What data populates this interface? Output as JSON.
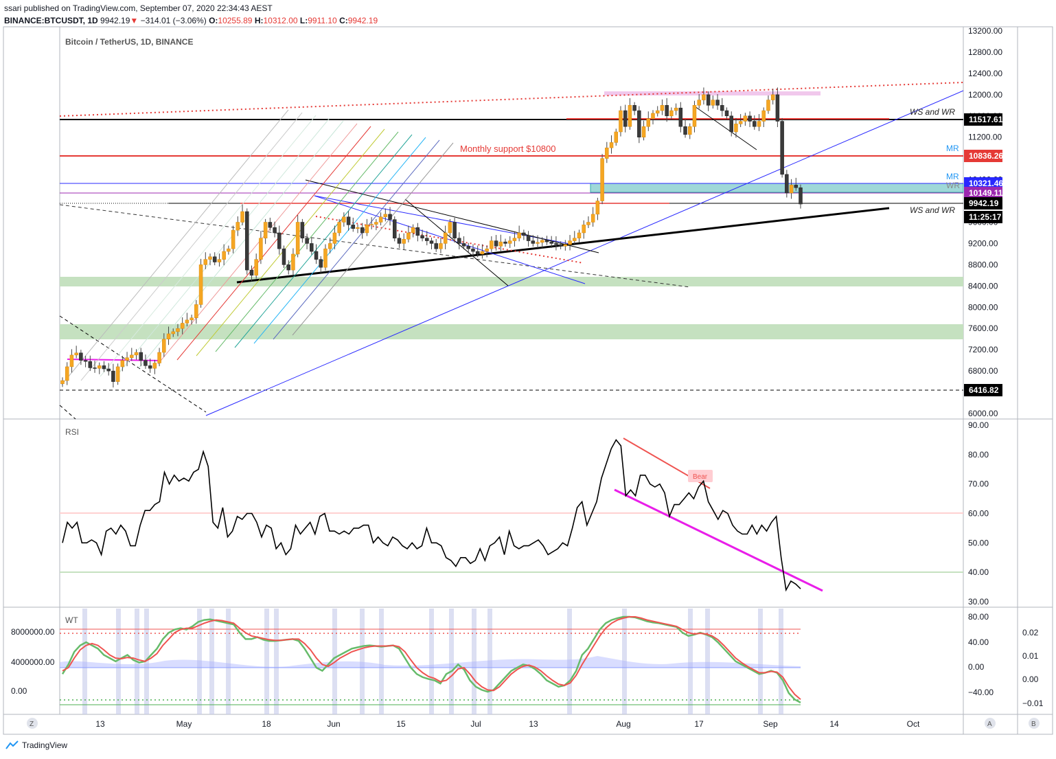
{
  "header": {
    "published": "ssari published on TradingView.com, September 07, 2020 22:34:43 AEST",
    "symbol": "BINANCE:BTCUSDT, 1D",
    "last": "9942.19",
    "arrow": "▼",
    "change": "−314.01 (−3.06%)",
    "o_label": "O:",
    "o_value": "10255.89",
    "h_label": "H:",
    "h_value": "10312.00",
    "l_label": "L:",
    "l_value": "9911.10",
    "c_label": "C:",
    "c_value": "9942.19"
  },
  "footer": {
    "brand": "TradingView"
  },
  "colors": {
    "up": "#f5a623",
    "down": "#3a3a3a",
    "rsi": "#000000",
    "wt_green": "#4caf50",
    "wt_red": "#ef5350",
    "support_zone": "#c5e1c0",
    "resistance": "#e53935"
  },
  "chart_data": [
    {
      "type": "candlestick",
      "title": "Bitcoin / TetherUS, 1D, BINANCE",
      "ylim": [
        5800,
        13300
      ],
      "y_ticks": [
        "13200.00",
        "12800.00",
        "12400.00",
        "12000.00",
        "11600.00",
        "11200.00",
        "10800.00",
        "10400.00",
        "10000.00",
        "9600.00",
        "9200.00",
        "8800.00",
        "8400.00",
        "8000.00",
        "7600.00",
        "7200.00",
        "6800.00",
        "6400.00",
        "6000.00"
      ],
      "x_ticks": [
        "13",
        "May",
        "18",
        "Jun",
        "15",
        "Jul",
        "13",
        "Aug",
        "17",
        "Sep",
        "14",
        "Oct"
      ],
      "price_labels": [
        {
          "text": "11517.61",
          "value": 11517.61,
          "bg": "#000000"
        },
        {
          "text": "10836.26",
          "value": 10836.26,
          "bg": "#e53935"
        },
        {
          "text": "10321.46",
          "value": 10321.46,
          "bg": "#2828ff"
        },
        {
          "text": "10149.11",
          "value": 10149.11,
          "bg": "#9c27b0"
        },
        {
          "text": "9942.19",
          "value": 9942.19,
          "bg": "#000000"
        },
        {
          "text": "11:25:17",
          "value": 9700,
          "bg": "#000000"
        },
        {
          "text": "6416.82",
          "value": 6416.82,
          "bg": "#000000"
        }
      ],
      "annotations": [
        "Monthly support $10800",
        "WS and WR",
        "WS and WR",
        "MR",
        "MR",
        "WR"
      ],
      "closes": [
        6620,
        6880,
        7100,
        7140,
        7000,
        6980,
        6860,
        6850,
        6900,
        6840,
        6800,
        6600,
        6880,
        7000,
        7050,
        7100,
        7150,
        7000,
        6900,
        6850,
        6950,
        7150,
        7400,
        7500,
        7540,
        7600,
        7700,
        7760,
        7800,
        8050,
        8800,
        8900,
        8950,
        8850,
        8900,
        9050,
        9100,
        9450,
        9600,
        9800,
        8700,
        8600,
        8900,
        9300,
        9600,
        9500,
        9400,
        9100,
        8800,
        8700,
        9000,
        9600,
        9300,
        9200,
        9050,
        8900,
        8750,
        9100,
        9200,
        9400,
        9600,
        9700,
        9550,
        9480,
        9500,
        9400,
        9550,
        9560,
        9600,
        9700,
        9750,
        9650,
        9300,
        9200,
        9280,
        9400,
        9500,
        9350,
        9300,
        9250,
        9200,
        9100,
        9200,
        9400,
        9600,
        9300,
        9200,
        9150,
        9100,
        9050,
        9000,
        9050,
        9100,
        9250,
        9150,
        9230,
        9200,
        9250,
        9300,
        9400,
        9350,
        9250,
        9200,
        9220,
        9260,
        9230,
        9200,
        9180,
        9150,
        9180,
        9250,
        9300,
        9400,
        9550,
        9600,
        9750,
        10000,
        10800,
        11000,
        11100,
        11300,
        11700,
        11400,
        11800,
        11700,
        11200,
        11400,
        11550,
        11650,
        11700,
        11800,
        11600,
        11700,
        11750,
        11400,
        11250,
        11400,
        11800,
        11900,
        12000,
        11800,
        11900,
        11800,
        11700,
        11600,
        11300,
        11450,
        11500,
        11600,
        11500,
        11400,
        11500,
        11700,
        11900,
        12000,
        11500,
        10500,
        10150,
        10300,
        10250,
        9942
      ],
      "x_start": 9,
      "x_end": 109
    },
    {
      "type": "line",
      "title": "RSI",
      "ylim": [
        28,
        91
      ],
      "y_ticks": [
        "90.00",
        "80.00",
        "70.00",
        "60.00",
        "50.00",
        "40.00",
        "30.00"
      ],
      "levels": [
        60,
        40
      ],
      "values": [
        50,
        57,
        55,
        57,
        50,
        50,
        51,
        50,
        46,
        54,
        55,
        53,
        56,
        54,
        49,
        49,
        56,
        61,
        61,
        63,
        64,
        74,
        70,
        73,
        71,
        72,
        71,
        74,
        75,
        81,
        76,
        57,
        55,
        62,
        52,
        54,
        59,
        58,
        60,
        60,
        57,
        52,
        56,
        55,
        48,
        50,
        46,
        48,
        56,
        53,
        55,
        57,
        53,
        59,
        60,
        54,
        54,
        53,
        54,
        53,
        55,
        55,
        56,
        56,
        50,
        52,
        50,
        49,
        52,
        51,
        49,
        48,
        50,
        48,
        49,
        55,
        50,
        50,
        49,
        45,
        44,
        42,
        45,
        45,
        43,
        44,
        48,
        44,
        49,
        50,
        52,
        46,
        54,
        49,
        48,
        49,
        49,
        50,
        51,
        49,
        46,
        47,
        48,
        50,
        49,
        55,
        62,
        64,
        56,
        60,
        64,
        72,
        77,
        82,
        85,
        83,
        66,
        68,
        66,
        73,
        73,
        70,
        69,
        70,
        67,
        59,
        63,
        63,
        65,
        67,
        65,
        69,
        71,
        64,
        61,
        58,
        61,
        60,
        56,
        54,
        53,
        53,
        56,
        53,
        56,
        54,
        57,
        59,
        45,
        34,
        37,
        36,
        34.4
      ],
      "annotations": [
        "Bear"
      ]
    },
    {
      "type": "line",
      "title": "WT",
      "ylim_left": [
        -2000000,
        10500000
      ],
      "left_ticks": [
        "8000000.00",
        "4000000.00",
        "0.00"
      ],
      "right_ticks_a": [
        "80.00",
        "40.00",
        "0.00",
        "−40.00"
      ],
      "right_ticks_b": [
        "0.02",
        "0.01",
        "0.00",
        "−0.01"
      ],
      "wt_range": [
        -65,
        85
      ],
      "levels": [
        60,
        53,
        -53,
        -60
      ],
      "series": [
        {
          "values": [
            -10,
            5,
            25,
            35,
            40,
            35,
            30,
            20,
            15,
            10,
            15,
            20,
            12,
            8,
            10,
            20,
            30,
            45,
            55,
            60,
            62,
            60,
            65,
            72,
            75,
            76,
            74,
            72,
            70,
            68,
            55,
            45,
            45,
            48,
            44,
            42,
            42,
            43,
            44,
            45,
            42,
            30,
            15,
            0,
            -5,
            5,
            15,
            20,
            25,
            30,
            32,
            34,
            35,
            34,
            33,
            34,
            35,
            30,
            15,
            0,
            -10,
            -15,
            -18,
            -20,
            -25,
            -10,
            -5,
            5,
            -3,
            -20,
            -30,
            -35,
            -38,
            -35,
            -25,
            -15,
            -5,
            0,
            5,
            3,
            -2,
            -10,
            -20,
            -25,
            -30,
            -28,
            -20,
            -5,
            20,
            30,
            45,
            60,
            70,
            75,
            78,
            80,
            80,
            79,
            76,
            73,
            71,
            70,
            68,
            66,
            64,
            55,
            50,
            52,
            55,
            52,
            48,
            40,
            30,
            20,
            10,
            5,
            0,
            -5,
            -10,
            -8,
            -5,
            -8,
            -20,
            -40,
            -50,
            -55
          ]
        },
        {
          "values": [
            -5,
            0,
            15,
            28,
            35,
            38,
            35,
            28,
            20,
            15,
            14,
            16,
            15,
            12,
            10,
            15,
            22,
            35,
            45,
            55,
            60,
            62,
            62,
            66,
            70,
            73,
            75,
            74,
            72,
            70,
            62,
            55,
            50,
            48,
            46,
            44,
            43,
            43,
            44,
            45,
            45,
            38,
            28,
            15,
            5,
            2,
            8,
            15,
            20,
            25,
            28,
            31,
            33,
            34,
            34,
            34,
            35,
            33,
            25,
            12,
            0,
            -8,
            -14,
            -17,
            -22,
            -20,
            -12,
            -2,
            0,
            -10,
            -22,
            -30,
            -35,
            -36,
            -30,
            -20,
            -10,
            -3,
            2,
            4,
            1,
            -5,
            -13,
            -20,
            -26,
            -28,
            -24,
            -12,
            5,
            20,
            35,
            50,
            62,
            70,
            75,
            78,
            80,
            80,
            78,
            75,
            73,
            71,
            69,
            67,
            65,
            60,
            55,
            53,
            54,
            53,
            50,
            44,
            35,
            25,
            15,
            8,
            2,
            -3,
            -8,
            -8,
            -6,
            -7,
            -15,
            -30,
            -42,
            -50
          ]
        }
      ]
    }
  ]
}
